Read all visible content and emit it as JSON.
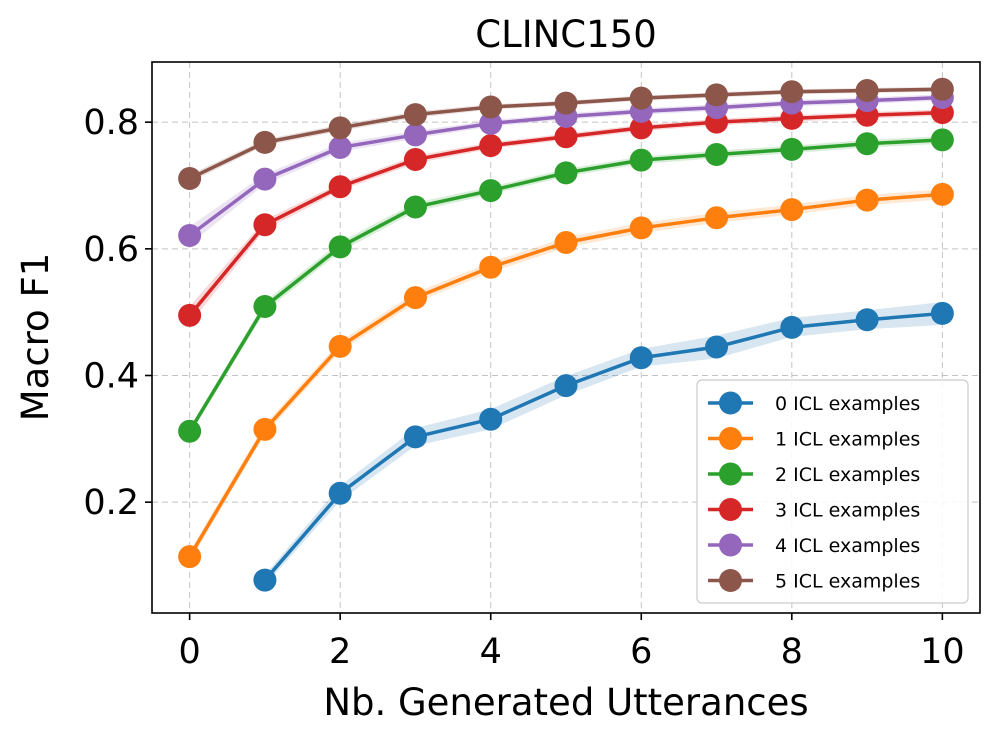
{
  "chart_data": {
    "type": "line",
    "title": "CLINC150",
    "xlabel": "Nb. Generated Utterances",
    "ylabel": "Macro F1",
    "xlim": [
      -0.5,
      10.5
    ],
    "ylim": [
      0.025,
      0.895
    ],
    "xticks": [
      0,
      2,
      4,
      6,
      8,
      10
    ],
    "xtick_labels": [
      "0",
      "2",
      "4",
      "6",
      "8",
      "10"
    ],
    "yticks": [
      0.2,
      0.4,
      0.6,
      0.8
    ],
    "ytick_labels": [
      "0.2",
      "0.4",
      "0.6",
      "0.8"
    ],
    "grid": true,
    "legend_position": "lower-right",
    "series": [
      {
        "name": "0 ICL examples",
        "color": "#1f77b4",
        "x": [
          1,
          2,
          3,
          4,
          5,
          6,
          7,
          8,
          9,
          10
        ],
        "y": [
          0.077,
          0.214,
          0.303,
          0.331,
          0.384,
          0.428,
          0.445,
          0.476,
          0.488,
          0.498
        ],
        "band": [
          0.008,
          0.012,
          0.014,
          0.016,
          0.015,
          0.014,
          0.018,
          0.015,
          0.015,
          0.018
        ]
      },
      {
        "name": "1 ICL examples",
        "color": "#ff7f0e",
        "x": [
          0,
          1,
          2,
          3,
          4,
          5,
          6,
          7,
          8,
          9,
          10
        ],
        "y": [
          0.114,
          0.315,
          0.446,
          0.523,
          0.571,
          0.61,
          0.633,
          0.649,
          0.662,
          0.677,
          0.686
        ],
        "band": [
          0.008,
          0.008,
          0.008,
          0.008,
          0.008,
          0.008,
          0.008,
          0.008,
          0.008,
          0.008,
          0.008
        ]
      },
      {
        "name": "2 ICL examples",
        "color": "#2ca02c",
        "x": [
          0,
          1,
          2,
          3,
          4,
          5,
          6,
          7,
          8,
          9,
          10
        ],
        "y": [
          0.312,
          0.509,
          0.603,
          0.666,
          0.692,
          0.72,
          0.74,
          0.749,
          0.757,
          0.766,
          0.772
        ],
        "band": [
          0.006,
          0.008,
          0.008,
          0.007,
          0.006,
          0.006,
          0.006,
          0.006,
          0.006,
          0.006,
          0.006
        ]
      },
      {
        "name": "3 ICL examples",
        "color": "#d62728",
        "x": [
          0,
          1,
          2,
          3,
          4,
          5,
          6,
          7,
          8,
          9,
          10
        ],
        "y": [
          0.495,
          0.638,
          0.698,
          0.741,
          0.763,
          0.777,
          0.791,
          0.8,
          0.806,
          0.811,
          0.815
        ],
        "band": [
          0.014,
          0.008,
          0.006,
          0.006,
          0.005,
          0.005,
          0.005,
          0.005,
          0.005,
          0.005,
          0.005
        ]
      },
      {
        "name": "4 ICL examples",
        "color": "#9467bd",
        "x": [
          0,
          1,
          2,
          3,
          4,
          5,
          6,
          7,
          8,
          9,
          10
        ],
        "y": [
          0.621,
          0.71,
          0.76,
          0.78,
          0.798,
          0.809,
          0.817,
          0.823,
          0.83,
          0.834,
          0.839
        ],
        "band": [
          0.014,
          0.008,
          0.007,
          0.006,
          0.005,
          0.005,
          0.005,
          0.005,
          0.005,
          0.005,
          0.005
        ]
      },
      {
        "name": "5 ICL examples",
        "color": "#8c564b",
        "x": [
          0,
          1,
          2,
          3,
          4,
          5,
          6,
          7,
          8,
          9,
          10
        ],
        "y": [
          0.711,
          0.768,
          0.791,
          0.812,
          0.824,
          0.83,
          0.838,
          0.843,
          0.848,
          0.85,
          0.852
        ],
        "band": [
          0.006,
          0.005,
          0.005,
          0.005,
          0.004,
          0.004,
          0.004,
          0.004,
          0.004,
          0.004,
          0.004
        ]
      }
    ]
  }
}
